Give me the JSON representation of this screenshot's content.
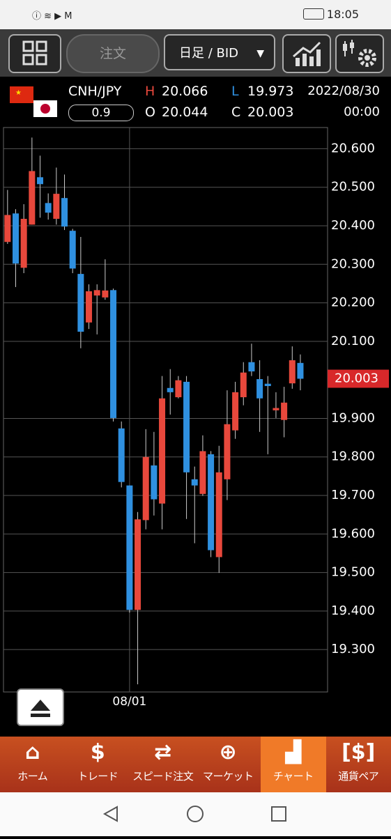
{
  "status_bar": {
    "time": "18:05"
  },
  "toolbar": {
    "order": "注文",
    "period": "日足 / BID"
  },
  "quote": {
    "pair": "CNH/JPY",
    "spread": "0.9",
    "labels": [
      "H",
      "O",
      "L",
      "C"
    ],
    "values": [
      "20.066",
      "20.044",
      "19.973",
      "20.003"
    ],
    "date": "2022/08/30",
    "time": "00:00"
  },
  "chart_data": {
    "type": "candlestick",
    "categories": [
      null,
      null,
      null,
      null,
      null,
      null,
      null,
      null,
      null,
      null,
      null,
      null,
      null,
      null,
      null,
      "08/01",
      null,
      null,
      null,
      null,
      null,
      null,
      null,
      null,
      null,
      null,
      null,
      null,
      null,
      null,
      null,
      null,
      null,
      null,
      null,
      null,
      null
    ],
    "open": [
      20.358,
      20.432,
      20.291,
      20.403,
      20.526,
      20.459,
      20.418,
      20.472,
      20.387,
      20.275,
      20.149,
      20.219,
      20.214,
      20.233,
      19.874,
      19.726,
      19.403,
      19.636,
      19.778,
      19.679,
      19.979,
      19.955,
      19.995,
      19.742,
      19.704,
      19.807,
      19.54,
      19.742,
      19.869,
      19.955,
      20.046,
      20.002,
      19.99,
      19.921,
      19.896,
      19.991,
      20.044
    ],
    "high": [
      20.493,
      20.443,
      20.456,
      20.629,
      20.582,
      20.484,
      20.551,
      20.533,
      20.392,
      20.371,
      20.248,
      20.248,
      20.313,
      20.237,
      19.892,
      19.726,
      19.657,
      19.872,
      19.865,
      20.01,
      20.028,
      20.01,
      20.01,
      19.775,
      19.856,
      19.815,
      19.829,
      19.973,
      19.995,
      20.046,
      20.094,
      20.051,
      20.01,
      19.968,
      19.982,
      20.087,
      20.066
    ],
    "low": [
      20.353,
      20.241,
      20.277,
      20.403,
      20.421,
      20.416,
      20.403,
      20.389,
      20.277,
      20.082,
      20.132,
      20.118,
      20.208,
      19.892,
      19.721,
      19.396,
      19.21,
      19.612,
      19.648,
      19.612,
      19.91,
      19.952,
      19.639,
      19.576,
      19.699,
      19.54,
      19.499,
      19.688,
      19.847,
      19.934,
      20.01,
      19.865,
      19.807,
      19.901,
      19.851,
      19.977,
      19.973
    ],
    "close": [
      20.428,
      20.302,
      20.418,
      20.542,
      20.508,
      20.434,
      20.483,
      20.398,
      20.289,
      20.125,
      20.23,
      20.233,
      20.232,
      19.901,
      19.735,
      19.403,
      19.638,
      19.8,
      19.69,
      19.952,
      19.968,
      19.999,
      19.76,
      19.726,
      19.815,
      19.558,
      19.76,
      19.885,
      19.968,
      20.019,
      20.022,
      19.952,
      19.984,
      19.927,
      19.941,
      20.051,
      20.003
    ],
    "up_color": "#e8483c",
    "down_color": "#2f90e0",
    "ylim": [
      19.19,
      20.655
    ],
    "yticks": [
      {
        "value": 20.6,
        "label": "20.600"
      },
      {
        "value": 20.5,
        "label": "20.500"
      },
      {
        "value": 20.4,
        "label": "20.400"
      },
      {
        "value": 20.3,
        "label": "20.300"
      },
      {
        "value": 20.2,
        "label": "20.200"
      },
      {
        "value": 20.1,
        "label": "20.100"
      },
      {
        "value": 19.9,
        "label": "19.900"
      },
      {
        "value": 19.8,
        "label": "19.800"
      },
      {
        "value": 19.7,
        "label": "19.700"
      },
      {
        "value": 19.6,
        "label": "19.600"
      },
      {
        "value": 19.5,
        "label": "19.500"
      },
      {
        "value": 19.4,
        "label": "19.400"
      },
      {
        "value": 19.3,
        "label": "19.300"
      }
    ],
    "grid": true,
    "last_price": 20.003
  },
  "nav": [
    "ホーム",
    "トレード",
    "スピード注文",
    "マーケット",
    "チャート",
    "通貨ペア"
  ]
}
